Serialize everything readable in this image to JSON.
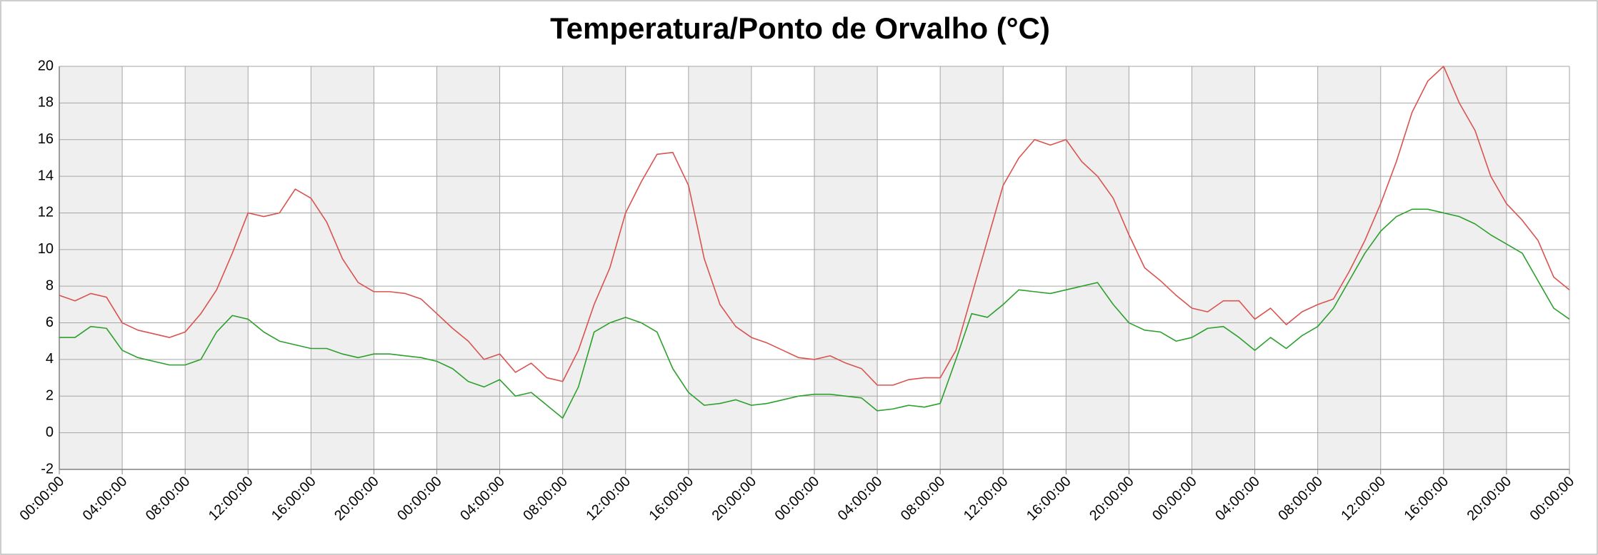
{
  "chart_data": {
    "type": "line",
    "title": "Temperatura/Ponto de Orvalho (°C)",
    "x": [
      0,
      1,
      2,
      3,
      4,
      5,
      6,
      7,
      8,
      9,
      10,
      11,
      12,
      13,
      14,
      15,
      16,
      17,
      18,
      19,
      20,
      21,
      22,
      23,
      24,
      25,
      26,
      27,
      28,
      29,
      30,
      31,
      32,
      33,
      34,
      35,
      36,
      37,
      38,
      39,
      40,
      41,
      42,
      43,
      44,
      45,
      46,
      47,
      48,
      49,
      50,
      51,
      52,
      53,
      54,
      55,
      56,
      57,
      58,
      59,
      60,
      61,
      62,
      63,
      64,
      65,
      66,
      67,
      68,
      69,
      70,
      71,
      72,
      73,
      74,
      75,
      76,
      77,
      78,
      79,
      80,
      81,
      82,
      83,
      84,
      85,
      86,
      87,
      88,
      89,
      90,
      91,
      92,
      93,
      94,
      95,
      96
    ],
    "series": [
      {
        "color": "#d9534f",
        "values": [
          7.5,
          7.2,
          7.6,
          7.4,
          6.0,
          5.6,
          5.4,
          5.2,
          5.5,
          6.5,
          7.8,
          9.8,
          12.0,
          11.8,
          12.0,
          13.3,
          12.8,
          11.5,
          9.5,
          8.2,
          7.7,
          7.7,
          7.6,
          7.3,
          6.5,
          5.7,
          5.0,
          4.0,
          4.3,
          3.3,
          3.8,
          3.0,
          2.8,
          4.5,
          7.0,
          9.0,
          12.0,
          13.7,
          15.2,
          15.3,
          13.5,
          9.5,
          7.0,
          5.8,
          5.2,
          4.9,
          4.5,
          4.1,
          4.0,
          4.2,
          3.8,
          3.5,
          2.6,
          2.6,
          2.9,
          3.0,
          3.0,
          4.5,
          7.5,
          10.5,
          13.5,
          15.0,
          16.0,
          15.7,
          16.0,
          14.8,
          14.0,
          12.8,
          10.8,
          9.0,
          8.3,
          7.5,
          6.8,
          6.6,
          7.2,
          7.2,
          6.2,
          6.8,
          5.9,
          6.6,
          7.0,
          7.3,
          8.8,
          10.5,
          12.5,
          14.8,
          17.5,
          19.2,
          20.0,
          18.0,
          16.5,
          14.0,
          12.5,
          11.6,
          10.5,
          8.5,
          7.8
        ]
      },
      {
        "color": "#2ca02c",
        "values": [
          5.2,
          5.2,
          5.8,
          5.7,
          4.5,
          4.1,
          3.9,
          3.7,
          3.7,
          4.0,
          5.5,
          6.4,
          6.2,
          5.5,
          5.0,
          4.8,
          4.6,
          4.6,
          4.3,
          4.1,
          4.3,
          4.3,
          4.2,
          4.1,
          3.9,
          3.5,
          2.8,
          2.5,
          2.9,
          2.0,
          2.2,
          1.5,
          0.8,
          2.5,
          5.5,
          6.0,
          6.3,
          6.0,
          5.5,
          3.5,
          2.2,
          1.5,
          1.6,
          1.8,
          1.5,
          1.6,
          1.8,
          2.0,
          2.1,
          2.1,
          2.0,
          1.9,
          1.2,
          1.3,
          1.5,
          1.4,
          1.6,
          4.0,
          6.5,
          6.3,
          7.0,
          7.8,
          7.7,
          7.6,
          7.8,
          8.0,
          8.2,
          7.0,
          6.0,
          5.6,
          5.5,
          5.0,
          5.2,
          5.7,
          5.8,
          5.2,
          4.5,
          5.2,
          4.6,
          5.3,
          5.8,
          6.8,
          8.3,
          9.8,
          11.0,
          11.8,
          12.2,
          12.2,
          12.0,
          11.8,
          11.4,
          10.8,
          10.3,
          9.8,
          8.3,
          6.8,
          6.2
        ]
      }
    ],
    "xlim": [
      0,
      96
    ],
    "xticks": [
      {
        "value": 0,
        "label": "00:00:00"
      },
      {
        "value": 4,
        "label": "04:00:00"
      },
      {
        "value": 8,
        "label": "08:00:00"
      },
      {
        "value": 12,
        "label": "12:00:00"
      },
      {
        "value": 16,
        "label": "16:00:00"
      },
      {
        "value": 20,
        "label": "20:00:00"
      },
      {
        "value": 24,
        "label": "00:00:00"
      },
      {
        "value": 28,
        "label": "04:00:00"
      },
      {
        "value": 32,
        "label": "08:00:00"
      },
      {
        "value": 36,
        "label": "12:00:00"
      },
      {
        "value": 40,
        "label": "16:00:00"
      },
      {
        "value": 44,
        "label": "20:00:00"
      },
      {
        "value": 48,
        "label": "00:00:00"
      },
      {
        "value": 52,
        "label": "04:00:00"
      },
      {
        "value": 56,
        "label": "08:00:00"
      },
      {
        "value": 60,
        "label": "12:00:00"
      },
      {
        "value": 64,
        "label": "16:00:00"
      },
      {
        "value": 68,
        "label": "20:00:00"
      },
      {
        "value": 72,
        "label": "00:00:00"
      },
      {
        "value": 76,
        "label": "04:00:00"
      },
      {
        "value": 80,
        "label": "08:00:00"
      },
      {
        "value": 84,
        "label": "12:00:00"
      },
      {
        "value": 88,
        "label": "16:00:00"
      },
      {
        "value": 92,
        "label": "20:00:00"
      },
      {
        "value": 96,
        "label": "00:00:00"
      }
    ],
    "ylim": [
      -2,
      20
    ],
    "yticks": [
      -2,
      0,
      2,
      4,
      6,
      8,
      10,
      12,
      14,
      16,
      18,
      20
    ],
    "grid": true,
    "band_color": "#efefef"
  }
}
